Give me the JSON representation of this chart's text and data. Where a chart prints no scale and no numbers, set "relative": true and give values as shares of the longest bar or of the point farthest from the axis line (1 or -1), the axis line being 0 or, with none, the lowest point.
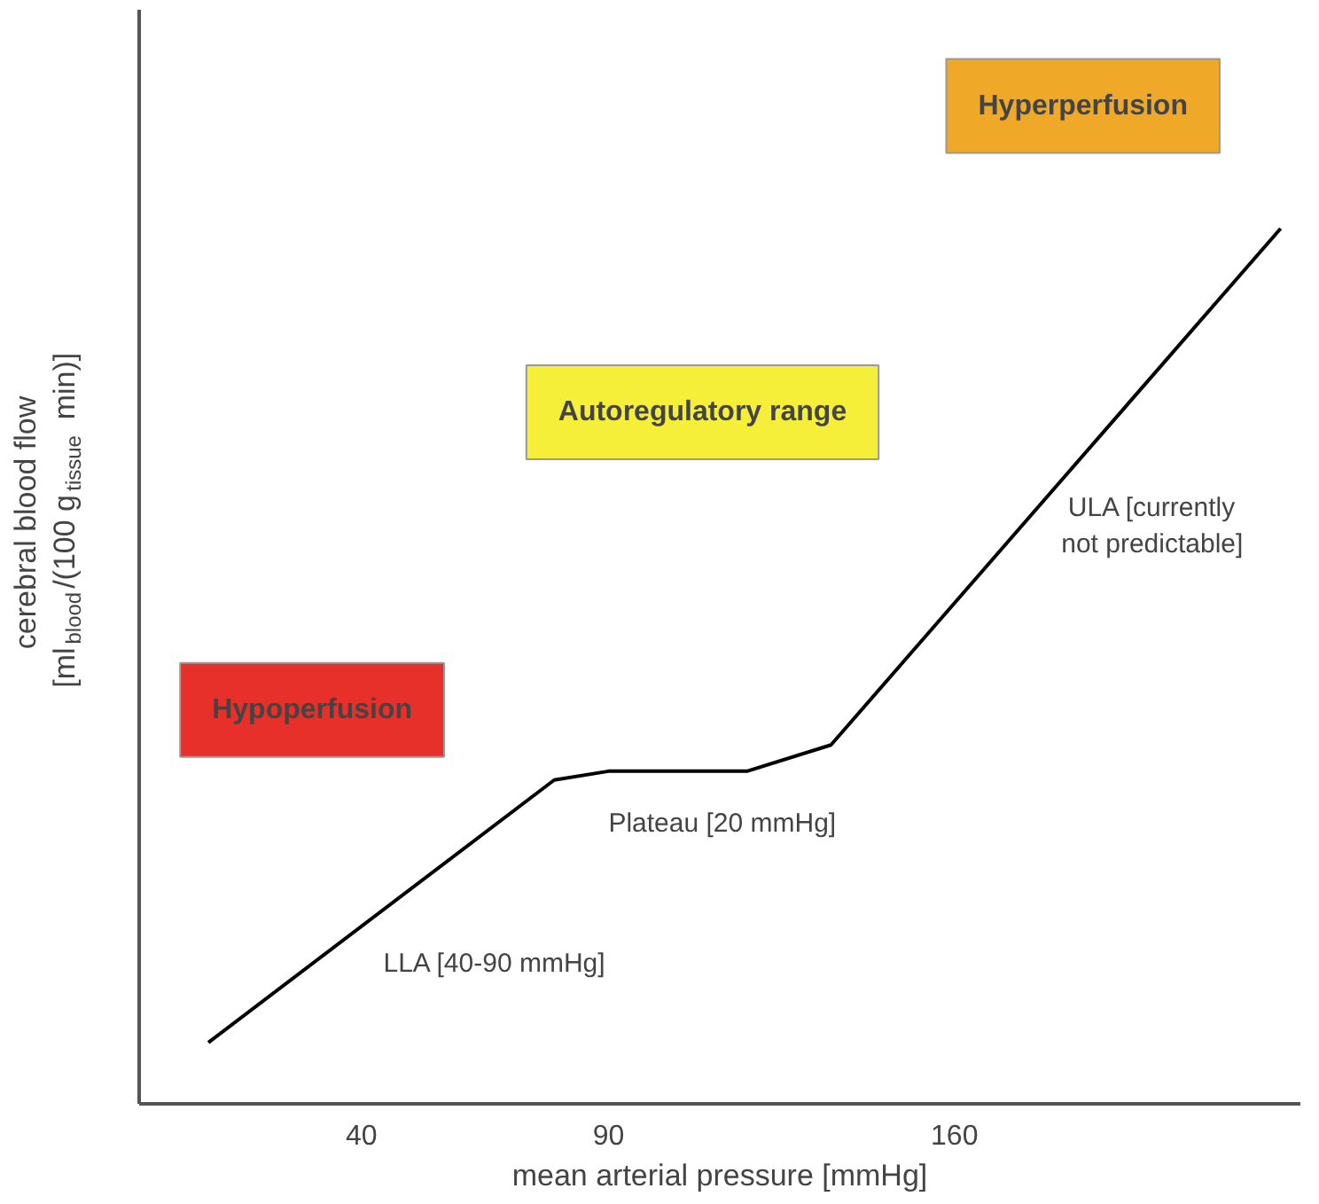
{
  "chart_data": {
    "type": "line",
    "relative": true,
    "xlabel": "mean arterial pressure [mmHg]",
    "ylabel": "cerebral blood flow [ml$_{blood}$/(100 g$_{tissue}$ min)]",
    "x": [
      9,
      79,
      90,
      118,
      135,
      226
    ],
    "series": [
      {
        "color": "#000000",
        "values": [
          0.07,
          0.37,
          0.38,
          0.38,
          0.41,
          1
        ]
      }
    ],
    "xlim": [
      -5,
      230
    ],
    "xticks": [
      40,
      90,
      160
    ],
    "tick_labels": "x",
    "grid": false,
    "line_style": "solid",
    "annotations": [
      "Hypoperfusion",
      "Autoregulatory range",
      "Hyperperfusion",
      "LLA [40-90 mmHg]",
      "Plateau [20 mmHg]",
      "ULA [currently\nnot predictable]"
    ]
  }
}
